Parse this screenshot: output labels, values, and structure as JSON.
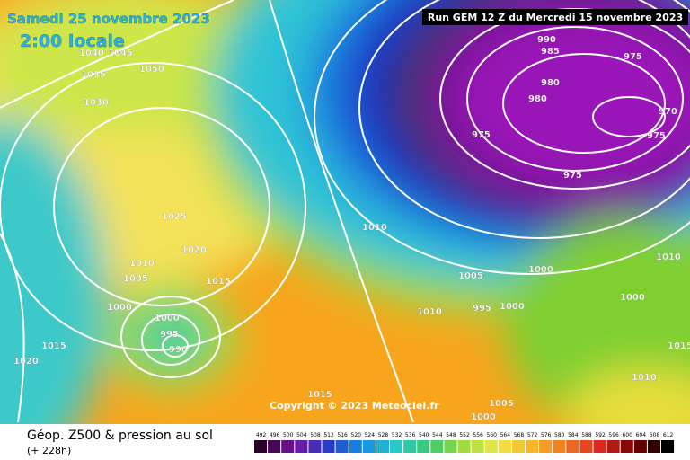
{
  "header": {
    "date": "Samedi 25 novembre 2023",
    "time": "2:00 locale",
    "run": "Run GEM 12 Z du Mercredi 15 novembre 2023"
  },
  "map": {
    "copyright": "Copyright © 2023 Meteociel.fr",
    "isobar_labels": [
      1040,
      1045,
      1050,
      1035,
      1030,
      1025,
      1020,
      1010,
      1005,
      1015,
      1000,
      1000,
      995,
      990,
      1015,
      1020,
      1015,
      1010,
      1005,
      1000,
      995,
      1000,
      1010,
      1005,
      1000,
      990,
      985,
      975,
      980,
      980,
      975,
      970,
      975,
      975,
      1010,
      1000,
      1015,
      1010
    ]
  },
  "footer": {
    "title": "Géop. Z500 & pression au sol",
    "lead": "(+ 228h)"
  },
  "colorbar": {
    "labels": [
      492,
      496,
      500,
      504,
      508,
      512,
      516,
      520,
      524,
      528,
      532,
      536,
      540,
      544,
      548,
      552,
      556,
      560,
      564,
      568,
      572,
      576,
      580,
      584,
      588,
      592,
      596,
      600,
      604,
      608,
      612
    ]
  }
}
